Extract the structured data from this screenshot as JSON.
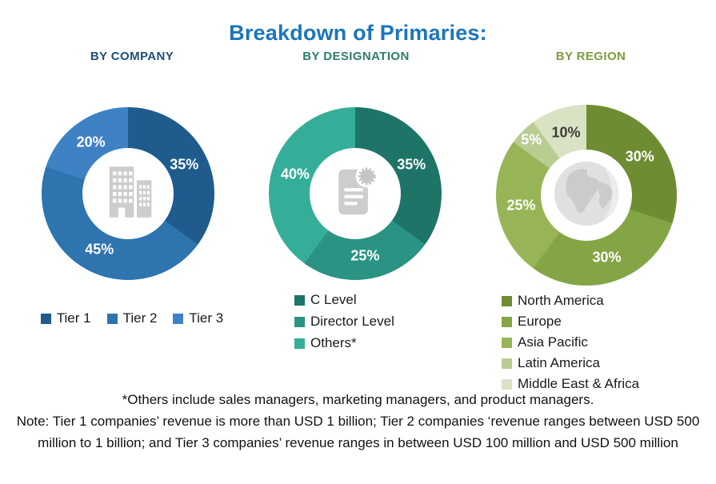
{
  "title": "Breakdown of Primaries:",
  "title_color": "#1B75BC",
  "footnote": {
    "others_line": "*Others include sales managers, marketing managers, and product managers.",
    "note_line": "Note: Tier 1 companies’ revenue is more than USD 1 billion; Tier 2 companies ‘revenue ranges between USD 500 million to 1 billion; and Tier 3 companies’ revenue ranges in between USD 100 million and USD 500 million"
  },
  "chart_data": [
    {
      "type": "pie",
      "donut": true,
      "title": "BY COMPANY",
      "title_color": "#1F4E79",
      "center_icon": "building-icon",
      "legend_layout": "horizontal",
      "labels": [
        "Tier 1",
        "Tier 2",
        "Tier 3"
      ],
      "values": [
        35,
        45,
        20
      ],
      "unit": "%",
      "colors": [
        "#1F5C8D",
        "#2E74AE",
        "#3E82C4"
      ],
      "value_label_colors": [
        "#FFFFFF",
        "#FFFFFF",
        "#FFFFFF"
      ]
    },
    {
      "type": "pie",
      "donut": true,
      "title": "BY DESIGNATION",
      "title_color": "#2E7D6B",
      "center_icon": "document-icon",
      "legend_layout": "vertical",
      "labels": [
        "C Level",
        "Director Level",
        "Others*"
      ],
      "values": [
        35,
        25,
        40
      ],
      "unit": "%",
      "colors": [
        "#1F7468",
        "#2B9383",
        "#35AE99"
      ],
      "value_label_colors": [
        "#FFFFFF",
        "#FFFFFF",
        "#FFFFFF"
      ]
    },
    {
      "type": "pie",
      "donut": true,
      "title": "BY REGION",
      "title_color": "#7E9C3C",
      "center_icon": "globe-icon",
      "legend_layout": "vertical",
      "labels": [
        "North America",
        "Europe",
        "Asia Pacific",
        "Latin America",
        "Middle East & Africa"
      ],
      "values": [
        30,
        30,
        25,
        5,
        10
      ],
      "unit": "%",
      "colors": [
        "#6E8C32",
        "#84A546",
        "#97B557",
        "#B9CD92",
        "#D9E3C4"
      ],
      "value_label_colors": [
        "#FFFFFF",
        "#FFFFFF",
        "#FFFFFF",
        "#FFFFFF",
        "#3C3C3C"
      ]
    }
  ]
}
